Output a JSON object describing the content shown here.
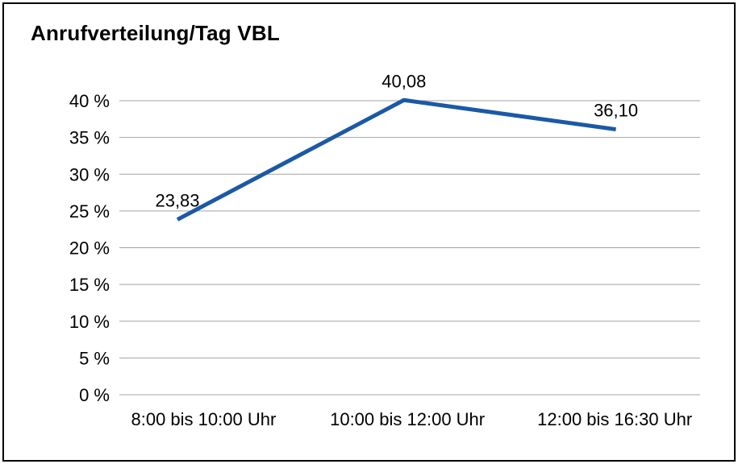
{
  "chart_data": {
    "type": "line",
    "title": "Anrufverteilung/Tag VBL",
    "categories": [
      "8:00 bis 10:00 Uhr",
      "10:00 bis 12:00 Uhr",
      "12:00 bis 16:30 Uhr"
    ],
    "values": [
      23.83,
      40.08,
      36.1
    ],
    "data_labels": [
      "23,83",
      "40,08",
      "36,10"
    ],
    "xlabel": "",
    "ylabel": "",
    "ylim": [
      0,
      40
    ],
    "ytick_step": 5,
    "ytick_labels": [
      "0 %",
      "5 %",
      "10 %",
      "15 %",
      "20 %",
      "25 %",
      "30 %",
      "35 %",
      "40 %"
    ],
    "grid": true,
    "legend": "none",
    "line_color": "#1b59a6",
    "grid_color": "#a3a3a3",
    "text_color": "#000000",
    "border_color": "#000000",
    "background_color": "#ffffff"
  }
}
